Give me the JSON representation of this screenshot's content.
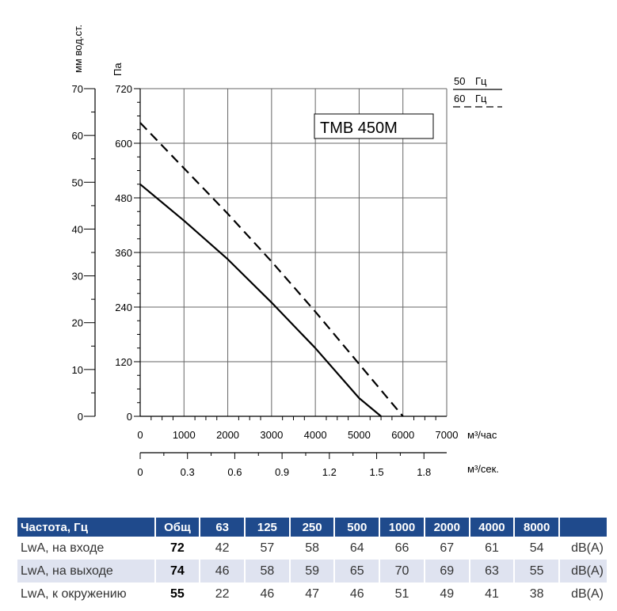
{
  "chart_data": {
    "type": "line",
    "model_label": "TMB 450M",
    "y_left_unit": "мм вод.ст.",
    "y_right_unit": "Па",
    "x_unit_flow": "м³/час",
    "x_unit_flow_sec": "м³/сек.",
    "x_ticks": [
      "0",
      "1000",
      "2000",
      "3000",
      "4000",
      "5000",
      "6000",
      "7000"
    ],
    "x_sec_ticks": [
      "0",
      "0.3",
      "0.6",
      "0.9",
      "1.2",
      "1.5",
      "1.8"
    ],
    "y_pa_ticks": [
      "0",
      "120",
      "240",
      "360",
      "480",
      "600",
      "720"
    ],
    "y_mm_ticks": [
      "0",
      "10",
      "20",
      "30",
      "40",
      "50",
      "60",
      "70"
    ],
    "xlim": [
      0,
      7000
    ],
    "ylim": [
      0,
      720
    ],
    "grid": true,
    "legend": [
      {
        "freq": "50",
        "unit": "Гц",
        "style": "solid"
      },
      {
        "freq": "60",
        "unit": "Гц",
        "style": "dashed"
      }
    ],
    "series": [
      {
        "name": "50 Гц",
        "style": "solid",
        "x": [
          0,
          1000,
          2000,
          3000,
          4000,
          5000,
          5500
        ],
        "y": [
          510,
          430,
          345,
          250,
          150,
          40,
          0
        ]
      },
      {
        "name": "60 Гц",
        "style": "dashed",
        "x": [
          0,
          1000,
          2000,
          3000,
          4000,
          5000,
          6000
        ],
        "y": [
          645,
          545,
          445,
          340,
          230,
          115,
          0
        ]
      }
    ]
  },
  "table": {
    "headers": [
      "Частота, Гц",
      "Общ",
      "63",
      "125",
      "250",
      "500",
      "1000",
      "2000",
      "4000",
      "8000",
      ""
    ],
    "rows": [
      {
        "label": "LwA, на входе",
        "total": "72",
        "values": [
          "42",
          "57",
          "58",
          "64",
          "66",
          "67",
          "61",
          "54"
        ],
        "unit": "dB(A)",
        "shaded": false
      },
      {
        "label": "LwA, на выходе",
        "total": "74",
        "values": [
          "46",
          "58",
          "59",
          "65",
          "70",
          "69",
          "63",
          "55"
        ],
        "unit": "dB(A)",
        "shaded": true
      },
      {
        "label": "LwA, к окружению",
        "total": "55",
        "values": [
          "22",
          "46",
          "47",
          "46",
          "51",
          "49",
          "41",
          "38"
        ],
        "unit": "dB(A)",
        "shaded": false
      }
    ]
  }
}
